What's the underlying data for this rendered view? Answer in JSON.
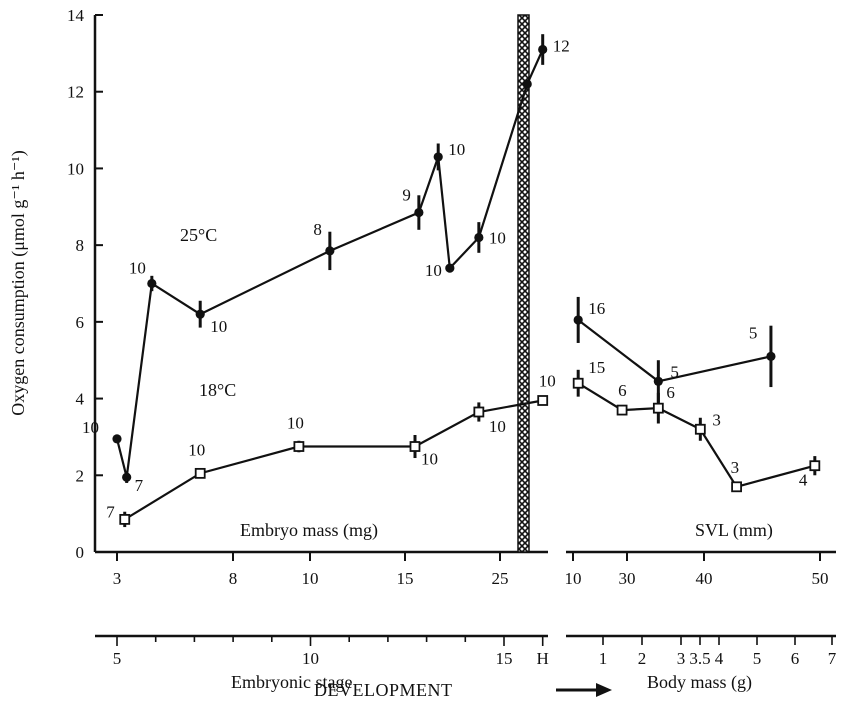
{
  "chart_data": {
    "type": "line",
    "ylabel": "Oxygen consumption (μmol g⁻¹ h⁻¹)",
    "ylim": [
      0,
      14
    ],
    "yticks": [
      "0",
      "2",
      "4",
      "6",
      "8",
      "10",
      "12",
      "14"
    ],
    "embryo_panel": {
      "axis_title": "Embryo mass (mg)",
      "mass_ticks": [
        "3",
        "8",
        "10",
        "15",
        "25"
      ],
      "stage_ticks": [
        "5",
        "10",
        "15",
        "H"
      ],
      "stage_axis_title": "Embryonic stage",
      "series": [
        {
          "name": "25°C",
          "marker": "filled-circle",
          "points": [
            {
              "x": 5.0,
              "y": 2.95,
              "n": "10",
              "err": 0
            },
            {
              "x": 5.25,
              "y": 1.95,
              "n": "7",
              "err": 0.15
            },
            {
              "x": 5.9,
              "y": 7.0,
              "n": "10",
              "err": 0.2
            },
            {
              "x": 7.15,
              "y": 6.2,
              "n": "10",
              "err": 0.35
            },
            {
              "x": 10.5,
              "y": 7.85,
              "n": "8",
              "err": 0.5
            },
            {
              "x": 12.8,
              "y": 8.85,
              "n": "9",
              "err": 0.45
            },
            {
              "x": 13.3,
              "y": 10.3,
              "n": "10",
              "err": 0.35
            },
            {
              "x": 13.6,
              "y": 7.4,
              "n": "10",
              "err": 0
            },
            {
              "x": 14.35,
              "y": 8.2,
              "n": "10",
              "err": 0.4
            },
            {
              "x": 15.6,
              "y": 12.2,
              "n": "",
              "err": 0
            },
            {
              "x": 16.0,
              "y": 13.1,
              "n": "12",
              "err": 0.4
            }
          ]
        },
        {
          "name": "18°C",
          "marker": "open-square",
          "points": [
            {
              "x": 5.2,
              "y": 0.85,
              "n": "7",
              "err": 0.2
            },
            {
              "x": 7.15,
              "y": 2.05,
              "n": "10",
              "err": 0
            },
            {
              "x": 9.7,
              "y": 2.75,
              "n": "10",
              "err": 0.15
            },
            {
              "x": 12.7,
              "y": 2.75,
              "n": "10",
              "err": 0.3
            },
            {
              "x": 14.35,
              "y": 3.65,
              "n": "10",
              "err": 0.25
            },
            {
              "x": 16.0,
              "y": 3.95,
              "n": "10",
              "err": 0
            }
          ]
        }
      ]
    },
    "juvenile_panel": {
      "axis_title": "SVL (mm)",
      "svl_ticks": [
        "10",
        "30",
        "40",
        "50"
      ],
      "mass_ticks": [
        "1",
        "2",
        "3",
        "3.5",
        "4",
        "5",
        "6",
        "7"
      ],
      "mass_axis_title": "Body mass (g)",
      "series": [
        {
          "name": "25°C",
          "marker": "filled-circle",
          "points": [
            {
              "x": 0.35,
              "y": 6.05,
              "n": "16",
              "err": 0.6
            },
            {
              "x": 2.45,
              "y": 4.45,
              "n": "5",
              "err": 0.55
            },
            {
              "x": 5.4,
              "y": 5.1,
              "n": "5",
              "err": 0.8
            }
          ]
        },
        {
          "name": "18°C",
          "marker": "open-square",
          "points": [
            {
              "x": 0.35,
              "y": 4.4,
              "n": "15",
              "err": 0.35
            },
            {
              "x": 1.5,
              "y": 3.7,
              "n": "6",
              "err": 0
            },
            {
              "x": 2.45,
              "y": 3.75,
              "n": "6",
              "err": 0.4
            },
            {
              "x": 3.55,
              "y": 3.2,
              "n": "3",
              "err": 0.3
            },
            {
              "x": 4.5,
              "y": 1.7,
              "n": "3",
              "err": 0.1
            },
            {
              "x": 6.55,
              "y": 2.25,
              "n": "4",
              "err": 0.25
            }
          ]
        }
      ]
    },
    "annotations": {
      "series_label_25": "25°C",
      "series_label_18": "18°C",
      "development": "DEVELOPMENT"
    }
  }
}
